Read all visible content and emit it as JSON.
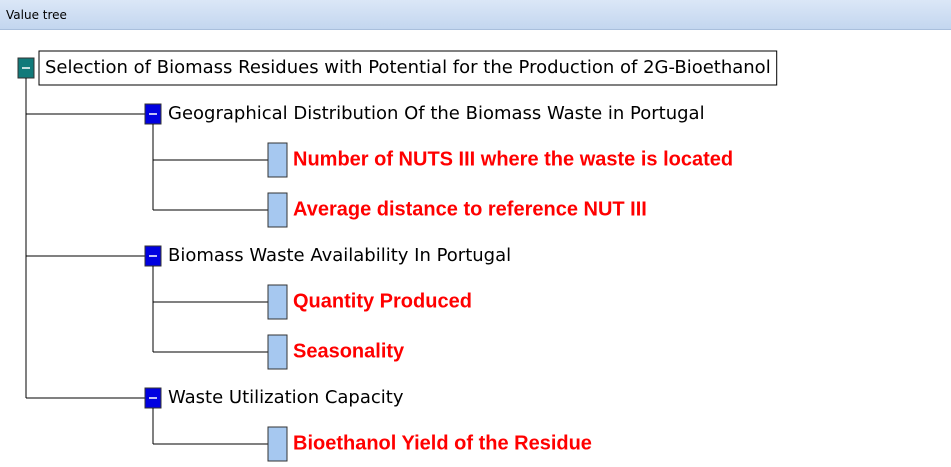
{
  "header": {
    "title": "Value tree"
  },
  "tree": {
    "label": "Selection of Biomass Residues with Potential for the Production of 2G-Bioethanol",
    "children": [
      {
        "label": "Geographical Distribution Of the Biomass Waste in Portugal",
        "children": [
          {
            "label": "Number of NUTS III where the waste is located"
          },
          {
            "label": "Average distance to reference NUT III"
          }
        ]
      },
      {
        "label": "Biomass Waste Availability In Portugal",
        "children": [
          {
            "label": "Quantity Produced"
          },
          {
            "label": "Seasonality"
          }
        ]
      },
      {
        "label": "Waste Utilization Capacity",
        "children": [
          {
            "label": "Bioethanol Yield of the Residue"
          }
        ]
      }
    ]
  }
}
